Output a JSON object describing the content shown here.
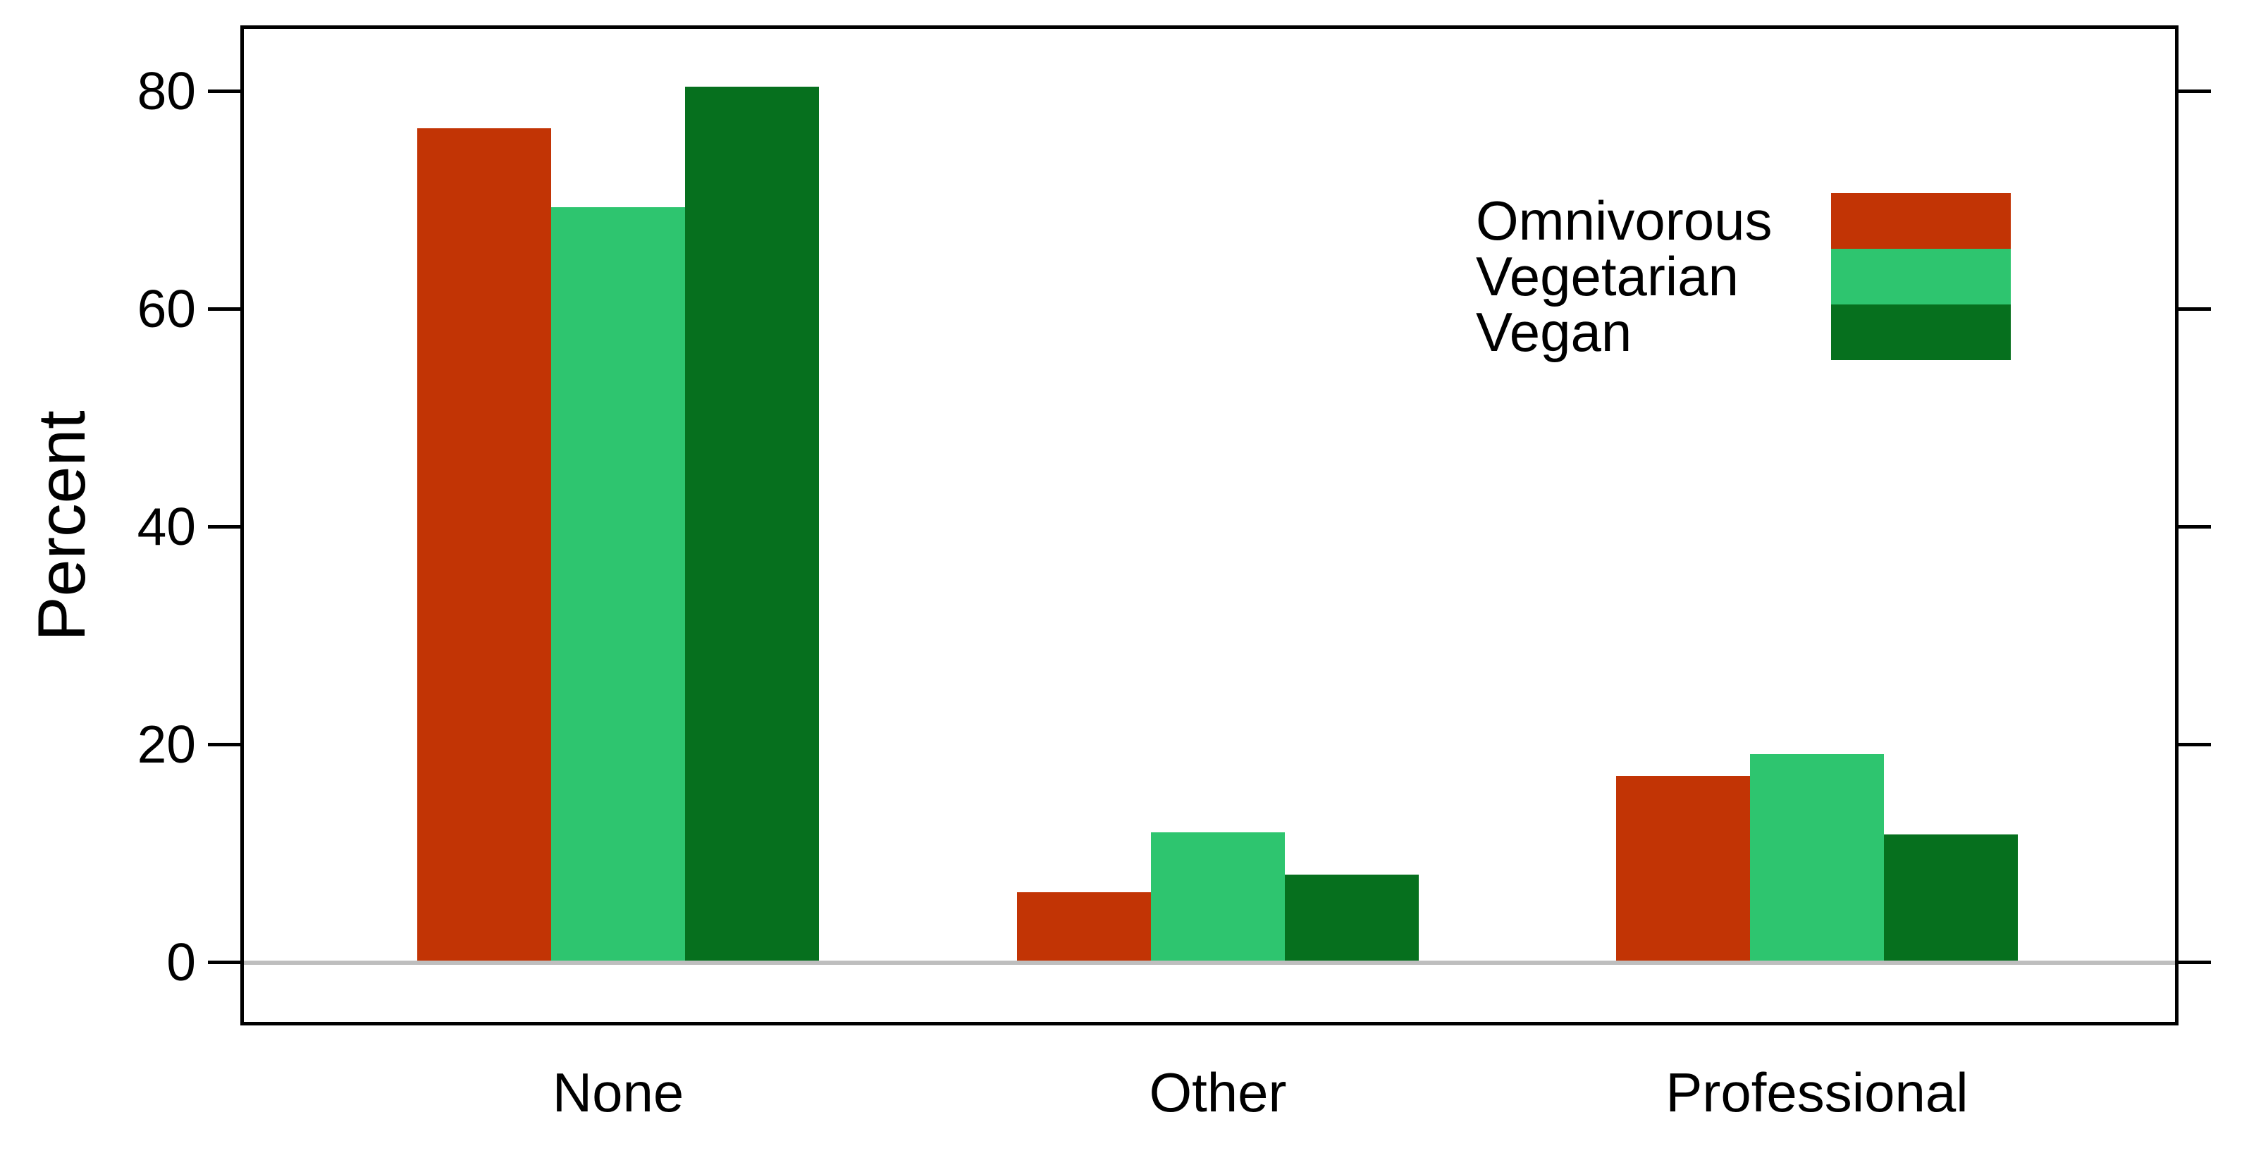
{
  "chart_data": {
    "type": "bar",
    "title": "",
    "categories": [
      "None",
      "Other",
      "Professional"
    ],
    "series": [
      {
        "name": "Omnivorous",
        "color": "#C23405",
        "values": [
          76.6,
          6.4,
          17.1
        ]
      },
      {
        "name": "Vegetarian",
        "color": "#2EC56F",
        "values": [
          69.3,
          11.9,
          19.1
        ]
      },
      {
        "name": "Vegan",
        "color": "#06701E",
        "values": [
          80.4,
          8.0,
          11.7
        ]
      }
    ],
    "xlabel": "",
    "ylabel": "Percent",
    "ylim": [
      0,
      80
    ],
    "yticks": [
      0,
      20,
      40,
      60,
      80
    ],
    "grid": false,
    "legend_position": "top-right",
    "baseline_color": "#BEBEBE",
    "axis_color": "#000000",
    "bar_orientation": "vertical",
    "grouping": "grouped"
  }
}
